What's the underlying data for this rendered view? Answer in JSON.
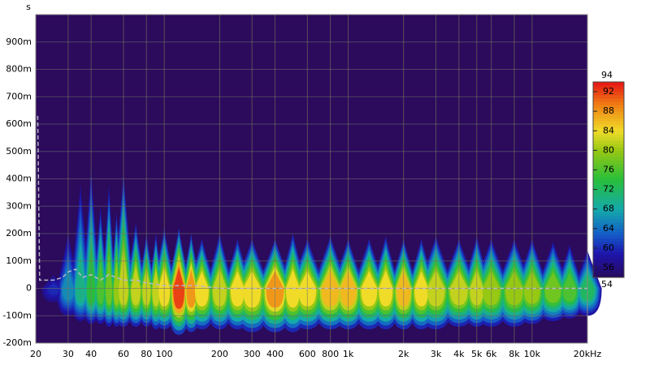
{
  "chart_data": {
    "type": "spectrogram",
    "y_label": "s",
    "log_x": true,
    "grid": true,
    "xlim": [
      20,
      20000
    ],
    "ylim": [
      -0.2,
      1.0
    ],
    "xticks": [
      20,
      30,
      40,
      60,
      80,
      100,
      200,
      300,
      400,
      600,
      800,
      {
        "value": 1000,
        "label": "1k"
      },
      {
        "value": 2000,
        "label": "2k"
      },
      {
        "value": 3000,
        "label": "3k"
      },
      {
        "value": 4000,
        "label": "4k"
      },
      {
        "value": 5000,
        "label": "5k"
      },
      {
        "value": 6000,
        "label": "6k"
      },
      {
        "value": 8000,
        "label": "8k"
      },
      {
        "value": 10000,
        "label": "10k"
      },
      {
        "value": 20000,
        "label": "20kHz"
      }
    ],
    "yticks": [
      {
        "value": -0.2,
        "label": "-200m"
      },
      {
        "value": -0.1,
        "label": "-100m"
      },
      0,
      {
        "value": 0.1,
        "label": "100m"
      },
      {
        "value": 0.2,
        "label": "200m"
      },
      {
        "value": 0.3,
        "label": "300m"
      },
      {
        "value": 0.4,
        "label": "400m"
      },
      {
        "value": 0.5,
        "label": "500m"
      },
      {
        "value": 0.6,
        "label": "600m"
      },
      {
        "value": 0.7,
        "label": "700m"
      },
      {
        "value": 0.8,
        "label": "800m"
      },
      {
        "value": 0.9,
        "label": "900m"
      }
    ],
    "zlim": [
      54,
      94
    ],
    "zticks": [
      54,
      56,
      60,
      64,
      68,
      72,
      76,
      80,
      84,
      88,
      92,
      94
    ],
    "freq": [
      25,
      30,
      35,
      40,
      45,
      50,
      55,
      60,
      70,
      80,
      90,
      100,
      120,
      140,
      160,
      200,
      250,
      300,
      400,
      500,
      600,
      800,
      1000,
      1300,
      1600,
      2000,
      2500,
      3000,
      4000,
      5000,
      6000,
      8000,
      10000,
      13000,
      16000,
      20000
    ],
    "top": [
      0.05,
      0.2,
      0.38,
      0.44,
      0.3,
      0.38,
      0.28,
      0.42,
      0.24,
      0.2,
      0.2,
      0.22,
      0.22,
      0.2,
      0.18,
      0.2,
      0.18,
      0.18,
      0.18,
      0.2,
      0.18,
      0.19,
      0.18,
      0.18,
      0.19,
      0.18,
      0.18,
      0.19,
      0.18,
      0.19,
      0.18,
      0.18,
      0.18,
      0.17,
      0.16,
      0.14
    ],
    "bottom": [
      -0.05,
      -0.1,
      -0.12,
      -0.13,
      -0.13,
      -0.14,
      -0.14,
      -0.14,
      -0.14,
      -0.14,
      -0.15,
      -0.15,
      -0.17,
      -0.16,
      -0.15,
      -0.15,
      -0.15,
      -0.16,
      -0.16,
      -0.16,
      -0.15,
      -0.15,
      -0.15,
      -0.15,
      -0.15,
      -0.15,
      -0.15,
      -0.15,
      -0.14,
      -0.14,
      -0.14,
      -0.14,
      -0.13,
      -0.12,
      -0.11,
      -0.1
    ],
    "level": [
      60,
      66,
      70,
      74,
      76,
      78,
      80,
      82,
      82,
      82,
      82,
      84,
      92,
      88,
      84,
      82,
      84,
      84,
      88,
      84,
      84,
      86,
      86,
      84,
      84,
      86,
      84,
      82,
      82,
      82,
      80,
      80,
      80,
      78,
      76,
      72
    ],
    "overlay": {
      "color": "#b8b8c8",
      "x": [
        20.5,
        21,
        25,
        28,
        30,
        33,
        36,
        40,
        45,
        50,
        60,
        70,
        80,
        100,
        150,
        200,
        20000
      ],
      "values": [
        0.63,
        0.03,
        0.03,
        0.04,
        0.06,
        0.07,
        0.04,
        0.05,
        0.03,
        0.05,
        0.03,
        0.03,
        0.02,
        0.01,
        0.01,
        0.0,
        0.0
      ]
    }
  }
}
